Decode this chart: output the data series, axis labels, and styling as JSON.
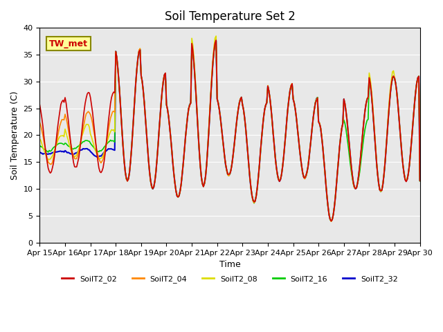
{
  "title": "Soil Temperature Set 2",
  "xlabel": "Time",
  "ylabel": "Soil Temperature (C)",
  "ylim": [
    0,
    40
  ],
  "xlim": [
    0,
    360
  ],
  "annotation": "TW_met",
  "bg_color": "#e8e8e8",
  "lines": {
    "SoilT2_02": {
      "color": "#cc0000",
      "lw": 1.2
    },
    "SoilT2_04": {
      "color": "#ff8800",
      "lw": 1.2
    },
    "SoilT2_08": {
      "color": "#dddd00",
      "lw": 1.2
    },
    "SoilT2_16": {
      "color": "#00cc00",
      "lw": 1.2
    },
    "SoilT2_32": {
      "color": "#0000cc",
      "lw": 1.5
    }
  },
  "xtick_labels": [
    "Apr 15",
    "Apr 16",
    "Apr 17",
    "Apr 18",
    "Apr 19",
    "Apr 20",
    "Apr 21",
    "Apr 22",
    "Apr 23",
    "Apr 24",
    "Apr 25",
    "Apr 26",
    "Apr 27",
    "Apr 28",
    "Apr 29",
    "Apr 30"
  ],
  "xtick_positions": [
    0,
    24,
    48,
    72,
    96,
    120,
    144,
    168,
    192,
    216,
    240,
    264,
    288,
    312,
    336,
    360
  ],
  "ytick_positions": [
    0,
    5,
    10,
    15,
    20,
    25,
    30,
    35,
    40
  ],
  "grid_color": "#ffffff",
  "peak_hour": 14,
  "trough_hour": 6
}
